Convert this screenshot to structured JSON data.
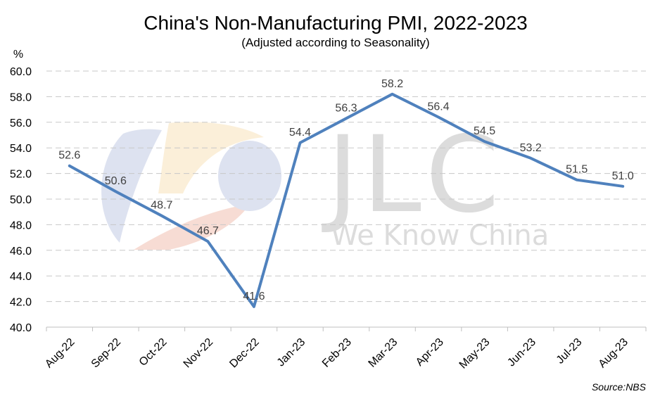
{
  "chart_data": {
    "type": "line",
    "title": "China's Non-Manufacturing PMI, 2022-2023",
    "subtitle": "(Adjusted according to Seasonality)",
    "ylabel": "%",
    "xlabel": "",
    "ylim": [
      40.0,
      60.0
    ],
    "ytick_step": 2.0,
    "grid": true,
    "categories": [
      "Aug-22",
      "Sep-22",
      "Oct-22",
      "Nov-22",
      "Dec-22",
      "Jan-23",
      "Feb-23",
      "Mar-23",
      "Apr-23",
      "May-23",
      "Jun-23",
      "Jul-23",
      "Aug-23"
    ],
    "series": [
      {
        "values": [
          52.6,
          50.6,
          48.7,
          46.7,
          41.6,
          54.4,
          56.3,
          58.2,
          56.4,
          54.5,
          53.2,
          51.5,
          51.0
        ]
      }
    ],
    "data_labels": [
      "52.6",
      "50.6",
      "48.7",
      "46.7",
      "41.6",
      "54.4",
      "56.3",
      "58.2",
      "56.4",
      "54.5",
      "53.2",
      "51.5",
      "51.0"
    ],
    "line_color": "#4f81bd",
    "source": "Source:NBS"
  },
  "watermark": {
    "brand": "JLC",
    "tagline": "We Know China",
    "colors": [
      "#dde2f0",
      "#fbefd9",
      "#f7dcd4",
      "#dde2f0"
    ]
  }
}
